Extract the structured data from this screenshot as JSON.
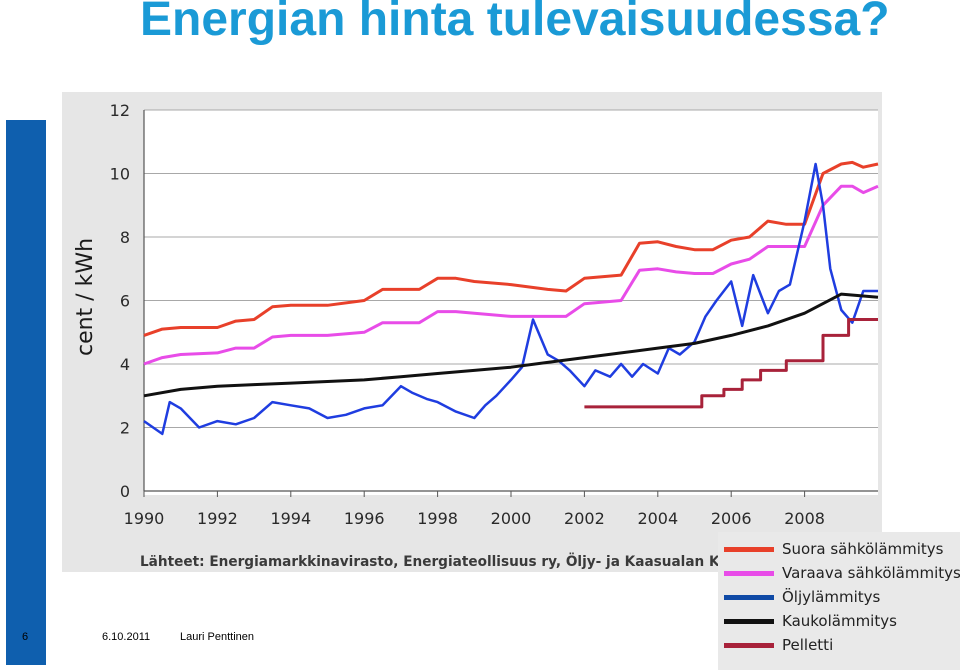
{
  "title": "Energian hinta tulevaisuudessa?",
  "footer": {
    "slide_number": "6",
    "date": "6.10.2011",
    "author": "Lauri Penttinen"
  },
  "colors": {
    "title": "#1a9ad6",
    "side_bar": "#0f5fae",
    "chart_bg": "#e6e6e6"
  },
  "chart_data": {
    "type": "line",
    "title": "",
    "xlabel": "",
    "ylabel": "cent / kWh",
    "xlim": [
      1990,
      2010
    ],
    "ylim": [
      0,
      12
    ],
    "xticks": [
      "1990",
      "1992",
      "1994",
      "1996",
      "1998",
      "2000",
      "2002",
      "2004",
      "2006",
      "2008"
    ],
    "yticks": [
      "0",
      "2",
      "4",
      "6",
      "8",
      "10",
      "12"
    ],
    "grid": "horizontal",
    "legend_position": "bottom-right outside",
    "source_note": "Lähteet: Energiamarkkinavirasto, Energiateollisuus ry, Öljy- ja Kaasualan Keskusliitto",
    "series": [
      {
        "name": "Suora sähkölämmitys",
        "color": "#e8402a",
        "width": 3,
        "x": [
          1990,
          1990.5,
          1991,
          1992,
          1992.5,
          1993,
          1993.5,
          1994,
          1995,
          1996,
          1996.5,
          1997,
          1997.5,
          1998,
          1998.5,
          1999,
          2000,
          2001,
          2001.5,
          2002,
          2003,
          2003.5,
          2004,
          2004.5,
          2005,
          2005.5,
          2006,
          2006.5,
          2007,
          2007.5,
          2008,
          2008.5,
          2009,
          2009.3,
          2009.6,
          2010
        ],
        "y": [
          4.9,
          5.1,
          5.15,
          5.15,
          5.35,
          5.4,
          5.8,
          5.85,
          5.85,
          6.0,
          6.35,
          6.35,
          6.35,
          6.7,
          6.7,
          6.6,
          6.5,
          6.35,
          6.3,
          6.7,
          6.8,
          7.8,
          7.85,
          7.7,
          7.6,
          7.6,
          7.9,
          8.0,
          8.5,
          8.4,
          8.4,
          10.0,
          10.3,
          10.35,
          10.2,
          10.3
        ]
      },
      {
        "name": "Varaava sähkölämmitys",
        "color": "#e84ce8",
        "width": 3,
        "x": [
          1990,
          1990.5,
          1991,
          1992,
          1992.5,
          1993,
          1993.5,
          1994,
          1995,
          1996,
          1996.5,
          1997,
          1997.5,
          1998,
          1998.5,
          1999,
          2000,
          2001,
          2001.5,
          2002,
          2003,
          2003.5,
          2004,
          2004.5,
          2005,
          2005.5,
          2006,
          2006.5,
          2007,
          2007.5,
          2008,
          2008.5,
          2009,
          2009.3,
          2009.6,
          2010
        ],
        "y": [
          4.0,
          4.2,
          4.3,
          4.35,
          4.5,
          4.5,
          4.85,
          4.9,
          4.9,
          5.0,
          5.3,
          5.3,
          5.3,
          5.65,
          5.65,
          5.6,
          5.5,
          5.5,
          5.5,
          5.9,
          6.0,
          6.95,
          7.0,
          6.9,
          6.85,
          6.85,
          7.15,
          7.3,
          7.7,
          7.7,
          7.7,
          9.0,
          9.6,
          9.6,
          9.4,
          9.6
        ]
      },
      {
        "name": "Öljylämmitys",
        "color": "#1f3de0",
        "width": 2.5,
        "x": [
          1990,
          1990.5,
          1990.7,
          1991,
          1991.5,
          1992,
          1992.5,
          1993,
          1993.5,
          1994,
          1994.5,
          1995,
          1995.5,
          1996,
          1996.5,
          1997,
          1997.3,
          1997.7,
          1998,
          1998.5,
          1999,
          1999.3,
          1999.6,
          2000,
          2000.3,
          2000.6,
          2001,
          2001.3,
          2001.6,
          2002,
          2002.3,
          2002.7,
          2003,
          2003.3,
          2003.6,
          2004,
          2004.3,
          2004.6,
          2005,
          2005.3,
          2005.6,
          2006,
          2006.3,
          2006.6,
          2007,
          2007.3,
          2007.6,
          2008,
          2008.3,
          2008.5,
          2008.7,
          2009,
          2009.3,
          2009.6,
          2010
        ],
        "y": [
          2.2,
          1.8,
          2.8,
          2.6,
          2.0,
          2.2,
          2.1,
          2.3,
          2.8,
          2.7,
          2.6,
          2.3,
          2.4,
          2.6,
          2.7,
          3.3,
          3.1,
          2.9,
          2.8,
          2.5,
          2.3,
          2.7,
          3.0,
          3.5,
          3.9,
          5.4,
          4.3,
          4.1,
          3.8,
          3.3,
          3.8,
          3.6,
          4.0,
          3.6,
          4.0,
          3.7,
          4.5,
          4.3,
          4.7,
          5.5,
          6.0,
          6.6,
          5.2,
          6.8,
          5.6,
          6.3,
          6.5,
          8.5,
          10.3,
          9.0,
          7.0,
          5.7,
          5.3,
          6.3,
          6.3
        ]
      },
      {
        "name": "Kaukolämmitys",
        "color": "#111111",
        "width": 3,
        "x": [
          1990,
          1991,
          1992,
          1993,
          1994,
          1995,
          1996,
          1997,
          1998,
          1999,
          2000,
          2001,
          2002,
          2003,
          2004,
          2005,
          2006,
          2007,
          2008,
          2009,
          2010
        ],
        "y": [
          3.0,
          3.2,
          3.3,
          3.35,
          3.4,
          3.45,
          3.5,
          3.6,
          3.7,
          3.8,
          3.9,
          4.05,
          4.2,
          4.35,
          4.5,
          4.65,
          4.9,
          5.2,
          5.6,
          6.2,
          6.1
        ]
      },
      {
        "name": "Pelletti",
        "color": "#a8223a",
        "width": 3,
        "x": [
          2002,
          2005.2,
          2005.2,
          2005.8,
          2005.8,
          2006.3,
          2006.3,
          2006.8,
          2006.8,
          2007.5,
          2007.5,
          2008.5,
          2008.5,
          2009.2,
          2009.2,
          2010
        ],
        "y": [
          2.65,
          2.65,
          3.0,
          3.0,
          3.2,
          3.2,
          3.5,
          3.5,
          3.8,
          3.8,
          4.1,
          4.1,
          4.9,
          4.9,
          5.4,
          5.4
        ]
      }
    ]
  }
}
